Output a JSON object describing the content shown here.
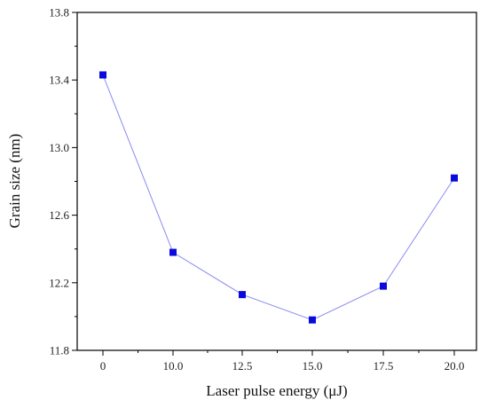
{
  "chart_data": {
    "type": "line",
    "title": "",
    "xlabel": "Laser pulse energy (μJ)",
    "ylabel": "Grain size (nm)",
    "categories": [
      "0",
      "10.0",
      "12.5",
      "15.0",
      "17.5",
      "20.0"
    ],
    "series": [
      {
        "values": [
          13.43,
          12.38,
          12.13,
          11.98,
          12.18,
          12.82
        ]
      }
    ],
    "ylim": [
      11.8,
      13.8
    ],
    "yticks": [
      "11.8",
      "12.2",
      "12.6",
      "13.0",
      "13.4",
      "13.8"
    ],
    "grid": false,
    "legend": "none",
    "marker": "square",
    "marker_color": "#0a0adc",
    "line_color": "#8a8af0",
    "axis_color": "#000000"
  }
}
